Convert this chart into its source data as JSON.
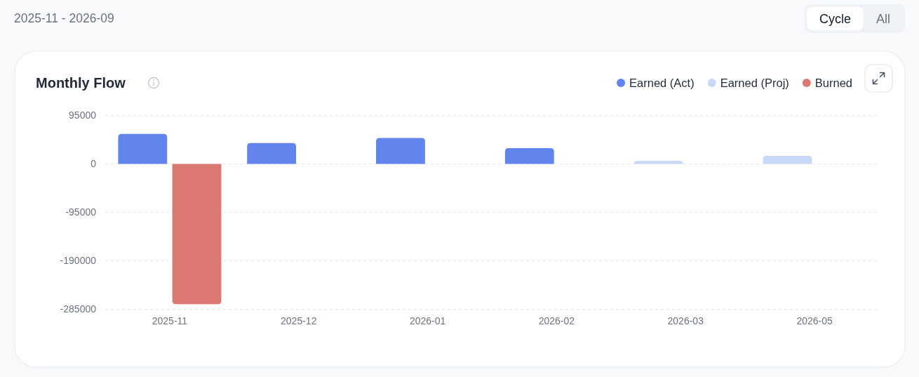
{
  "chart_data": {
    "type": "bar",
    "title": "Monthly Flow",
    "subtitle": "2025-11 - 2026-09",
    "annotations": [
      "Cycle",
      "All"
    ],
    "categories": [
      "2025-11",
      "2025-12",
      "2026-01",
      "2026-02",
      "2026-03",
      "2026-05"
    ],
    "series": [
      {
        "name": "Earned (Act)",
        "color": "#6285ed",
        "values": [
          59000,
          41000,
          51000,
          31000,
          null,
          null
        ]
      },
      {
        "name": "Earned (Proj)",
        "color": "#c8d8f8",
        "values": [
          null,
          null,
          null,
          null,
          6000,
          16000
        ]
      },
      {
        "name": "Burned",
        "color": "#dc7872",
        "values": [
          -275000,
          null,
          null,
          null,
          null,
          null
        ]
      }
    ],
    "ylim": [
      -285000,
      95000
    ],
    "yticks": [
      -285000,
      -190000,
      -95000,
      0,
      95000
    ],
    "grid": "y",
    "legend": "top right"
  }
}
